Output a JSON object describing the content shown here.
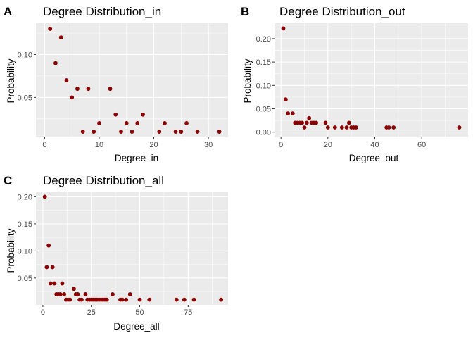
{
  "chart_data": [
    {
      "type": "scatter",
      "panel": "A",
      "title": "Degree Distribution_in",
      "xlabel": "Degree_in",
      "ylabel": "Probability",
      "xlim": [
        -1.6,
        33.6
      ],
      "ylim": [
        0.0035,
        0.1365
      ],
      "xticks": [
        0,
        10,
        20,
        30
      ],
      "yticks": [
        0.05,
        0.1
      ],
      "ytick_labels": [
        "0.05",
        "0.10"
      ],
      "point_color": "#8B0000",
      "panel_bg": "#EBEBEB",
      "grid_color": "#FFFFFF",
      "points": [
        [
          1,
          0.13
        ],
        [
          2,
          0.09
        ],
        [
          3,
          0.12
        ],
        [
          4,
          0.07
        ],
        [
          5,
          0.05
        ],
        [
          6,
          0.06
        ],
        [
          7,
          0.01
        ],
        [
          8,
          0.06
        ],
        [
          9,
          0.01
        ],
        [
          10,
          0.02
        ],
        [
          12,
          0.06
        ],
        [
          13,
          0.03
        ],
        [
          14,
          0.01
        ],
        [
          15,
          0.02
        ],
        [
          16,
          0.01
        ],
        [
          17,
          0.02
        ],
        [
          18,
          0.03
        ],
        [
          21,
          0.01
        ],
        [
          22,
          0.02
        ],
        [
          24,
          0.01
        ],
        [
          25,
          0.01
        ],
        [
          26,
          0.02
        ],
        [
          28,
          0.01
        ],
        [
          32,
          0.01
        ]
      ]
    },
    {
      "type": "scatter",
      "panel": "B",
      "title": "Degree Distribution_out",
      "xlabel": "Degree_out",
      "ylabel": "Probability",
      "xlim": [
        -2.75,
        79.75
      ],
      "ylim": [
        -0.0111,
        0.2331
      ],
      "xticks": [
        0,
        20,
        40,
        60
      ],
      "yticks": [
        0.0,
        0.05,
        0.1,
        0.15,
        0.2
      ],
      "ytick_labels": [
        "0.00",
        "0.05",
        "0.10",
        "0.15",
        "0.20"
      ],
      "point_color": "#8B0000",
      "panel_bg": "#EBEBEB",
      "grid_color": "#FFFFFF",
      "points": [
        [
          1,
          0.222
        ],
        [
          2,
          0.07
        ],
        [
          3,
          0.04
        ],
        [
          5,
          0.04
        ],
        [
          6,
          0.02
        ],
        [
          7,
          0.02
        ],
        [
          8,
          0.02
        ],
        [
          9,
          0.02
        ],
        [
          10,
          0.01
        ],
        [
          11,
          0.02
        ],
        [
          12,
          0.03
        ],
        [
          13,
          0.02
        ],
        [
          14,
          0.02
        ],
        [
          15,
          0.02
        ],
        [
          19,
          0.02
        ],
        [
          20,
          0.01
        ],
        [
          23,
          0.01
        ],
        [
          26,
          0.01
        ],
        [
          28,
          0.01
        ],
        [
          29,
          0.02
        ],
        [
          30,
          0.01
        ],
        [
          31,
          0.01
        ],
        [
          32,
          0.01
        ],
        [
          45,
          0.01
        ],
        [
          46,
          0.01
        ],
        [
          48,
          0.01
        ],
        [
          76,
          0.01
        ]
      ]
    },
    {
      "type": "scatter",
      "panel": "C",
      "title": "Degree Distribution_all",
      "xlabel": "Degree_all",
      "ylabel": "Probability",
      "xlim": [
        -3.6,
        95.6
      ],
      "ylim": [
        0.0004,
        0.2096
      ],
      "xticks": [
        0,
        25,
        50,
        75
      ],
      "yticks": [
        0.05,
        0.1,
        0.15,
        0.2
      ],
      "ytick_labels": [
        "0.05",
        "0.10",
        "0.15",
        "0.20"
      ],
      "point_color": "#8B0000",
      "panel_bg": "#EBEBEB",
      "grid_color": "#FFFFFF",
      "points": [
        [
          1,
          0.2
        ],
        [
          2,
          0.07
        ],
        [
          3,
          0.11
        ],
        [
          4,
          0.04
        ],
        [
          5,
          0.07
        ],
        [
          6,
          0.04
        ],
        [
          7,
          0.02
        ],
        [
          8,
          0.02
        ],
        [
          9,
          0.02
        ],
        [
          10,
          0.04
        ],
        [
          11,
          0.02
        ],
        [
          12,
          0.01
        ],
        [
          13,
          0.01
        ],
        [
          14,
          0.01
        ],
        [
          16,
          0.03
        ],
        [
          17,
          0.02
        ],
        [
          18,
          0.02
        ],
        [
          19,
          0.01
        ],
        [
          20,
          0.01
        ],
        [
          22,
          0.02
        ],
        [
          23,
          0.01
        ],
        [
          24,
          0.01
        ],
        [
          25,
          0.01
        ],
        [
          26,
          0.01
        ],
        [
          27,
          0.01
        ],
        [
          28,
          0.01
        ],
        [
          29,
          0.01
        ],
        [
          30,
          0.01
        ],
        [
          31,
          0.01
        ],
        [
          32,
          0.01
        ],
        [
          33,
          0.01
        ],
        [
          36,
          0.02
        ],
        [
          40,
          0.01
        ],
        [
          41,
          0.01
        ],
        [
          43,
          0.01
        ],
        [
          45,
          0.02
        ],
        [
          50,
          0.01
        ],
        [
          55,
          0.01
        ],
        [
          69,
          0.01
        ],
        [
          73,
          0.01
        ],
        [
          78,
          0.01
        ],
        [
          92,
          0.01
        ]
      ]
    }
  ]
}
